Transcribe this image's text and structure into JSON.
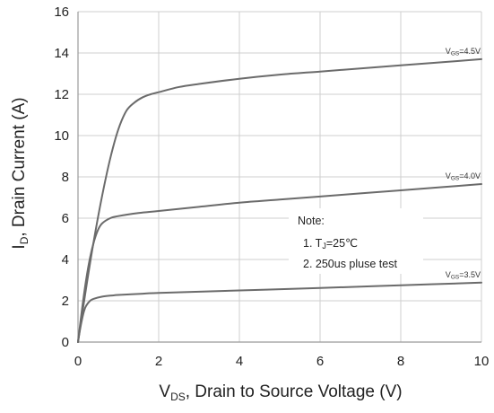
{
  "chart_data": {
    "type": "line",
    "title": "",
    "xlabel": {
      "prefix": "V",
      "subscript": "DS",
      "text": ", Drain to Source Voltage (V)"
    },
    "ylabel": {
      "prefix": "I",
      "subscript": "D",
      "text": ", Drain Current (A)"
    },
    "xlim": [
      0,
      10
    ],
    "ylim": [
      0,
      16
    ],
    "xticks": [
      0,
      2,
      4,
      6,
      8,
      10
    ],
    "yticks": [
      0,
      2,
      4,
      6,
      8,
      10,
      12,
      14,
      16
    ],
    "grid": true,
    "line_color": "#6b6b6b",
    "grid_color": "#cfcfcf",
    "series": [
      {
        "label_prefix": "V",
        "label_sub": "GS",
        "label_value": "=4.5V",
        "x": [
          0,
          0.2,
          0.4,
          0.6,
          0.8,
          1.0,
          1.2,
          1.4,
          1.6,
          1.8,
          2.0,
          2.5,
          3,
          4,
          5,
          6,
          7,
          8,
          9,
          10
        ],
        "y": [
          0,
          2.6,
          5.0,
          7.1,
          8.9,
          10.3,
          11.2,
          11.6,
          11.85,
          12.0,
          12.1,
          12.35,
          12.5,
          12.75,
          12.95,
          13.1,
          13.25,
          13.4,
          13.55,
          13.7
        ]
      },
      {
        "label_prefix": "V",
        "label_sub": "GS",
        "label_value": "=4.0V",
        "x": [
          0,
          0.1,
          0.2,
          0.3,
          0.4,
          0.5,
          0.6,
          0.8,
          1.0,
          1.5,
          2,
          3,
          4,
          5,
          6,
          7,
          8,
          9,
          10
        ],
        "y": [
          0,
          1.6,
          3.0,
          4.1,
          4.9,
          5.45,
          5.75,
          6.0,
          6.1,
          6.25,
          6.35,
          6.55,
          6.75,
          6.9,
          7.05,
          7.2,
          7.35,
          7.5,
          7.65
        ]
      },
      {
        "label_prefix": "V",
        "label_sub": "GS",
        "label_value": "=3.5V",
        "x": [
          0,
          0.05,
          0.1,
          0.15,
          0.2,
          0.3,
          0.4,
          0.6,
          0.8,
          1.0,
          1.5,
          2,
          4,
          6,
          8,
          10
        ],
        "y": [
          0,
          0.6,
          1.1,
          1.5,
          1.75,
          2.0,
          2.1,
          2.2,
          2.25,
          2.28,
          2.33,
          2.38,
          2.5,
          2.62,
          2.75,
          2.88
        ]
      }
    ],
    "note": {
      "title": "Note:",
      "line1": {
        "prefix": "1. T",
        "sub": "J",
        "suffix": "=25℃"
      },
      "line2": "2. 250us pluse test"
    }
  }
}
